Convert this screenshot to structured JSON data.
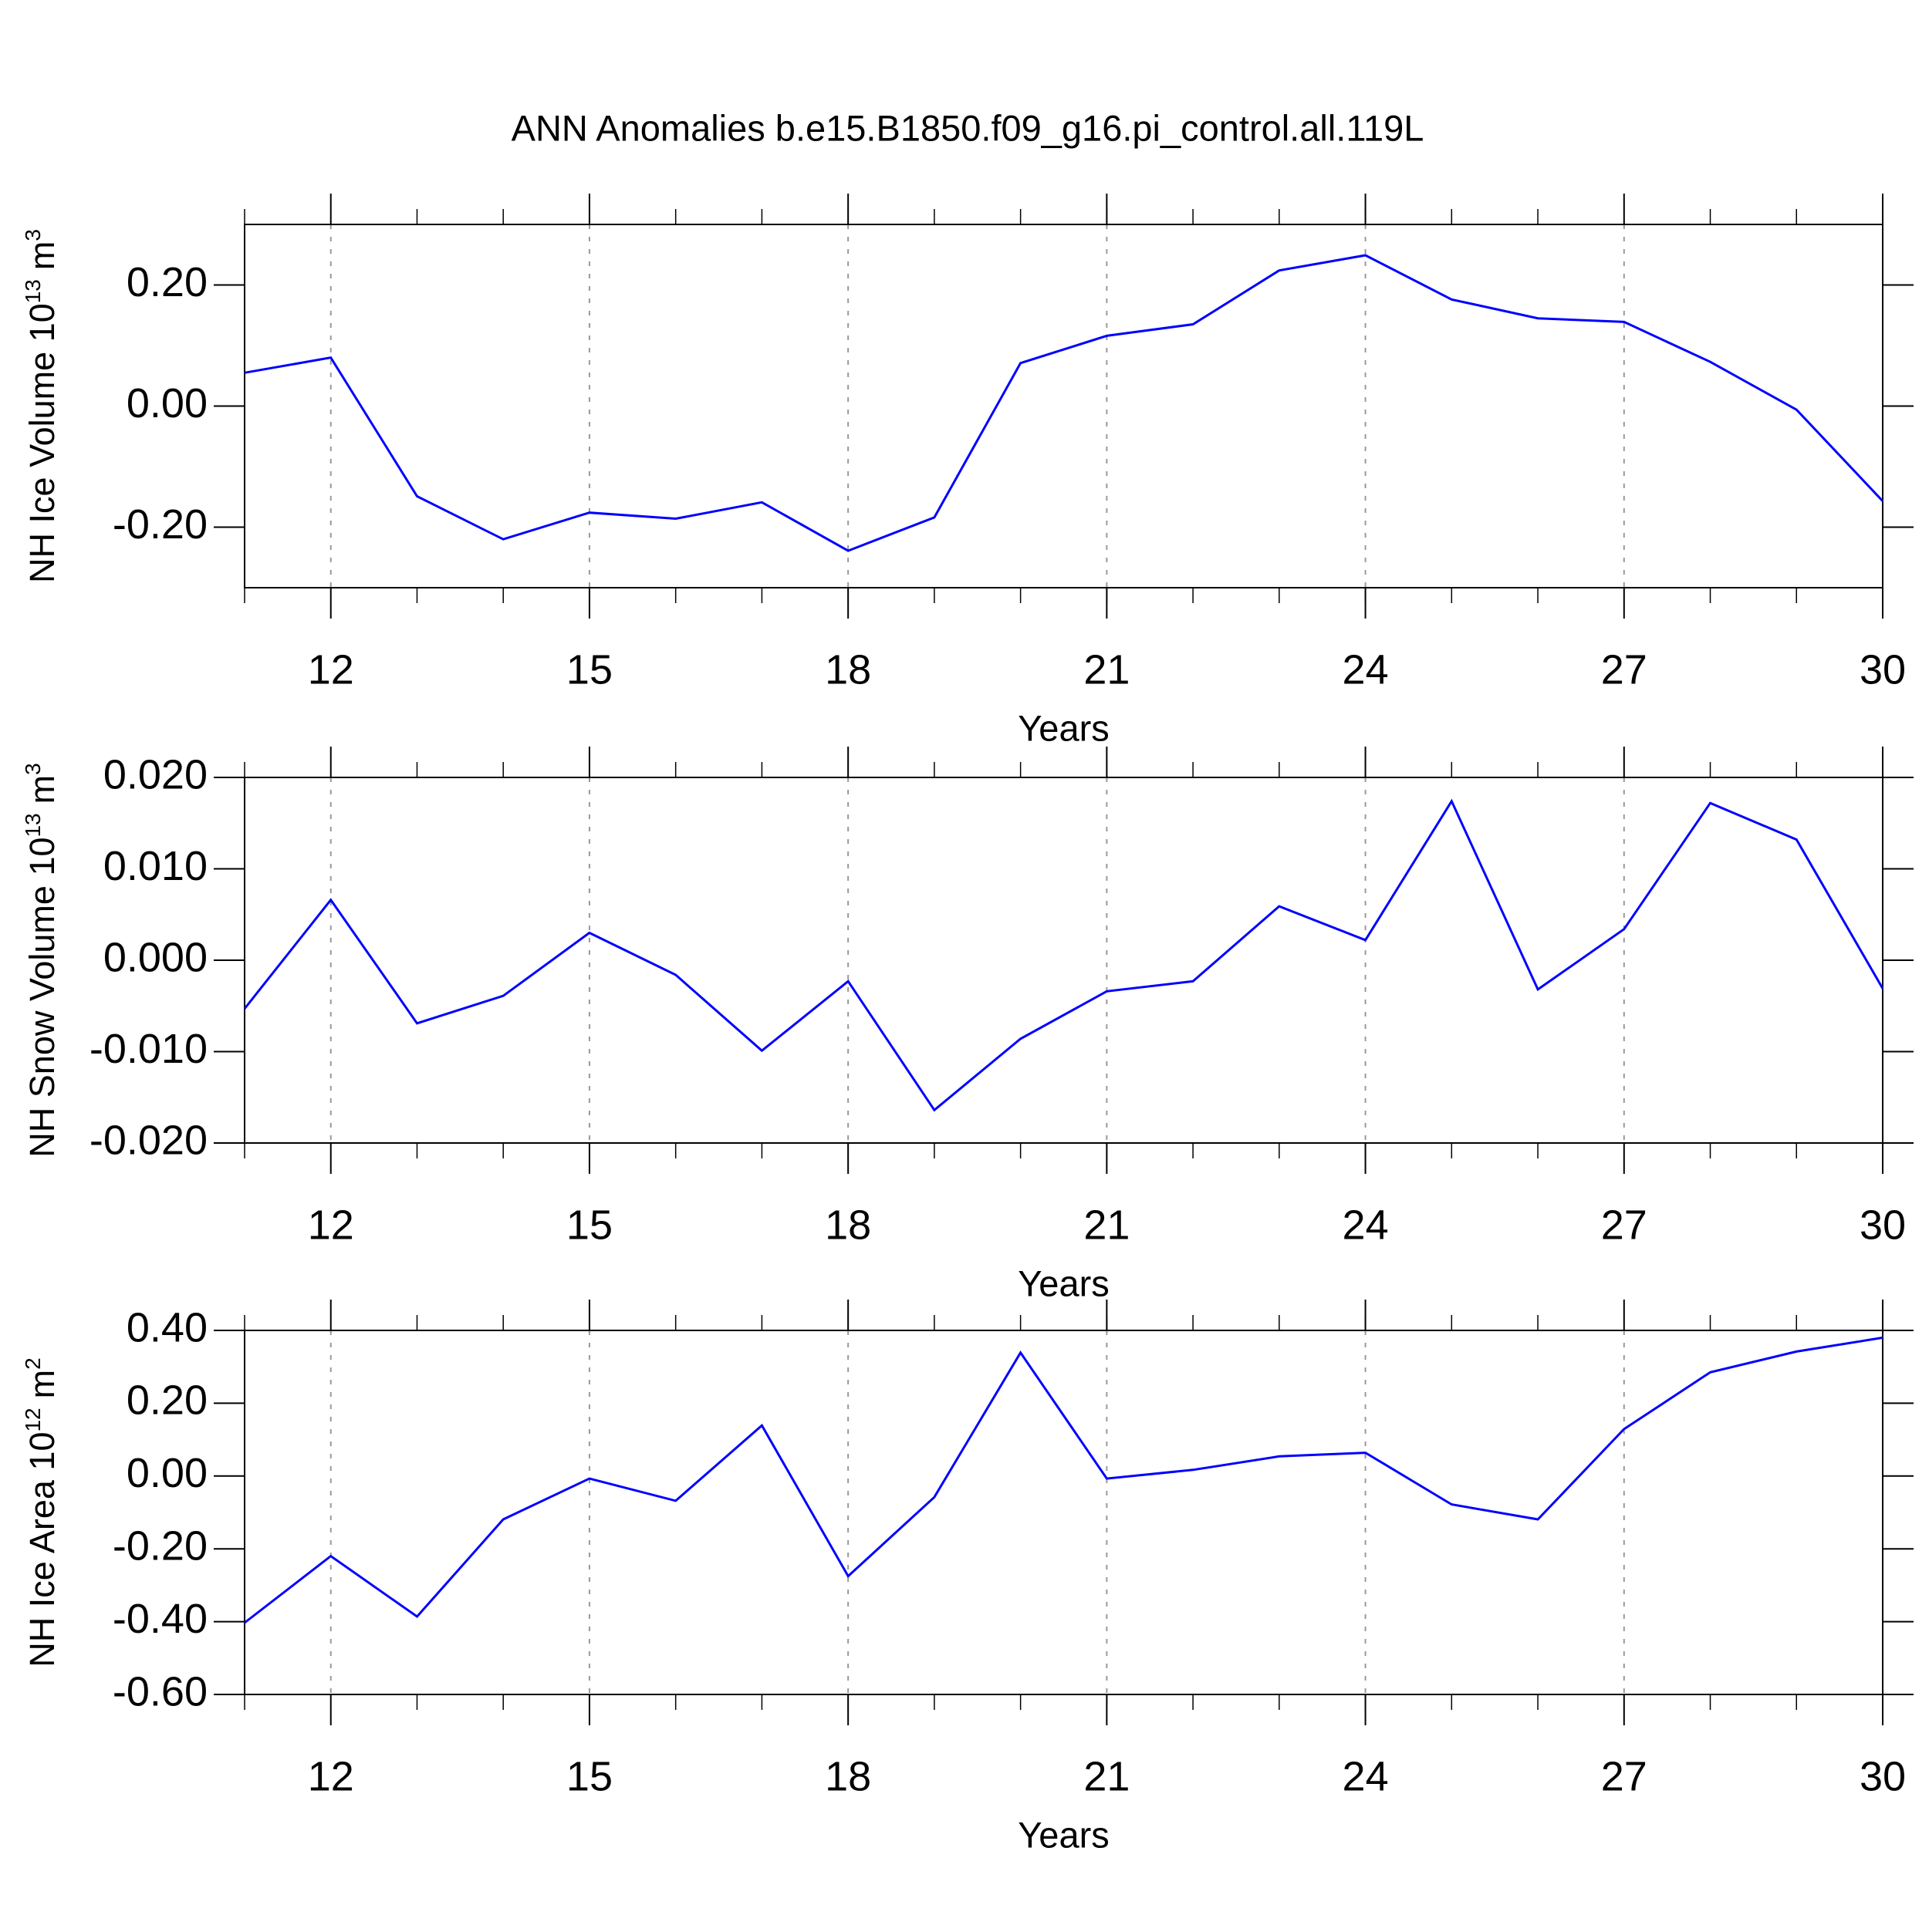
{
  "title": "ANN Anomalies b.e15.B1850.f09_g16.pi_control.all.119L",
  "chart_data": [
    {
      "type": "line",
      "xlabel": "Years",
      "ylabel": [
        "NH Ice Volume 10",
        "13",
        "m",
        "3"
      ],
      "x": [
        11,
        12,
        13,
        14,
        15,
        16,
        17,
        18,
        19,
        20,
        21,
        22,
        23,
        24,
        25,
        26,
        27,
        28,
        29,
        30
      ],
      "series": [
        {
          "color": "#0000ff",
          "values": [
            0.055,
            0.08,
            -0.149,
            -0.22,
            -0.176,
            -0.186,
            -0.159,
            -0.239,
            -0.184,
            0.071,
            0.116,
            0.135,
            0.224,
            0.249,
            0.176,
            0.145,
            0.139,
            0.073,
            -0.006,
            -0.157
          ]
        }
      ],
      "xlim": [
        11,
        30
      ],
      "xticks": [
        12,
        15,
        18,
        21,
        24,
        27,
        30
      ],
      "ylim": [
        -0.3,
        0.3
      ],
      "yticks": [
        {
          "value": -0.2,
          "label": "-0.20"
        },
        {
          "value": 0,
          "label": "0.00"
        },
        {
          "value": 0.2,
          "label": "0.20"
        }
      ],
      "grid": true
    },
    {
      "type": "line",
      "xlabel": "Years",
      "ylabel": [
        "NH Snow Volume 10",
        "13",
        "m",
        "3"
      ],
      "x": [
        11,
        12,
        13,
        14,
        15,
        16,
        17,
        18,
        19,
        20,
        21,
        22,
        23,
        24,
        25,
        26,
        27,
        28,
        29,
        30
      ],
      "series": [
        {
          "color": "#0000ff",
          "values": [
            -0.0053,
            0.0066,
            -0.0069,
            -0.0039,
            0.003,
            -0.0016,
            -0.0099,
            -0.0023,
            -0.0164,
            -0.0086,
            -0.0034,
            -0.0023,
            0.0059,
            0.0022,
            0.0174,
            -0.0032,
            0.0034,
            0.0172,
            0.0132,
            -0.0031
          ]
        }
      ],
      "xlim": [
        11,
        30
      ],
      "xticks": [
        12,
        15,
        18,
        21,
        24,
        27,
        30
      ],
      "ylim": [
        -0.02,
        0.02
      ],
      "yticks": [
        {
          "value": -0.02,
          "label": "-0.020"
        },
        {
          "value": -0.01,
          "label": "-0.010"
        },
        {
          "value": 0,
          "label": "0.000"
        },
        {
          "value": 0.01,
          "label": "0.010"
        },
        {
          "value": 0.02,
          "label": "0.020"
        }
      ],
      "grid": true
    },
    {
      "type": "line",
      "xlabel": "Years",
      "ylabel": [
        "NH Ice Area 10",
        "12",
        "m",
        "2"
      ],
      "x": [
        11,
        12,
        13,
        14,
        15,
        16,
        17,
        18,
        19,
        20,
        21,
        22,
        23,
        24,
        25,
        26,
        27,
        28,
        29,
        30
      ],
      "series": [
        {
          "color": "#0000ff",
          "values": [
            -0.403,
            -0.22,
            -0.386,
            -0.119,
            -0.007,
            -0.068,
            0.139,
            -0.275,
            -0.058,
            0.339,
            -0.007,
            0.017,
            0.054,
            0.064,
            -0.078,
            -0.119,
            0.129,
            0.285,
            0.342,
            0.38
          ]
        }
      ],
      "xlim": [
        11,
        30
      ],
      "xticks": [
        12,
        15,
        18,
        21,
        24,
        27,
        30
      ],
      "ylim": [
        -0.6,
        0.4
      ],
      "yticks": [
        {
          "value": -0.6,
          "label": "-0.60"
        },
        {
          "value": -0.4,
          "label": "-0.40"
        },
        {
          "value": -0.2,
          "label": "-0.20"
        },
        {
          "value": 0,
          "label": "0.00"
        },
        {
          "value": 0.2,
          "label": "0.20"
        },
        {
          "value": 0.4,
          "label": "0.40"
        }
      ],
      "grid": true
    }
  ]
}
